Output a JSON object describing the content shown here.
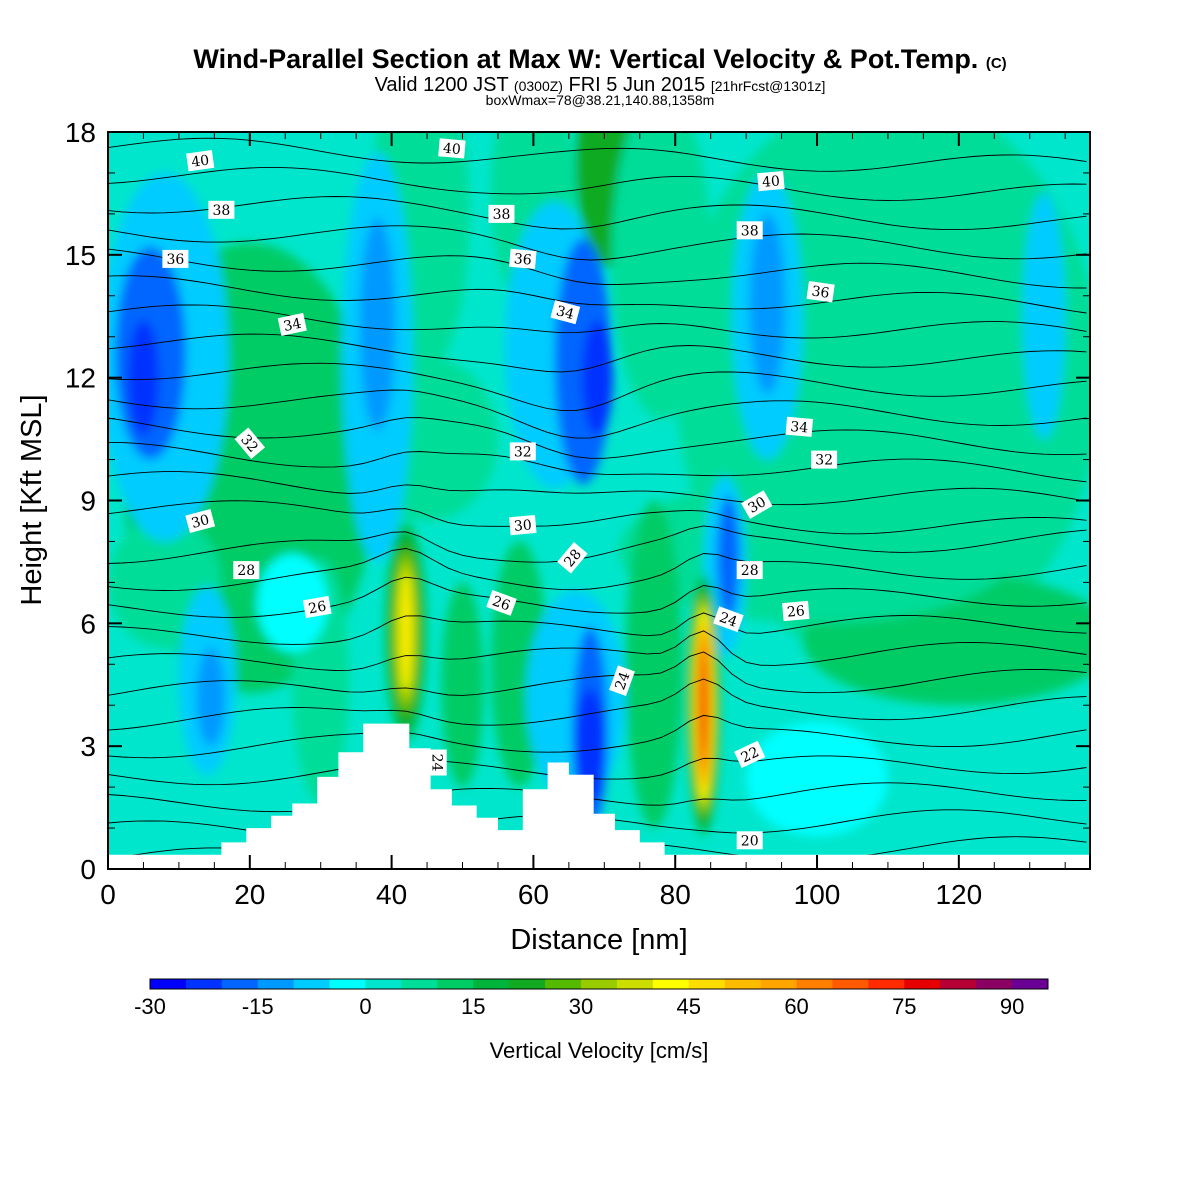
{
  "header": {
    "title": "Wind-Parallel Section at Max W: Vertical Velocity & Pot.Temp.",
    "copyright": "(C)",
    "valid_prefix": "Valid 1200 JST",
    "valid_utc": "(0300Z)",
    "valid_date": "FRI 5 Jun 2015",
    "forecast": "[21hrFcst@1301z]",
    "box_wmax": "boxWmax=78@38.21,140.88,1358m"
  },
  "chart_data": {
    "type": "heatmap",
    "xlabel": "Distance [nm]",
    "ylabel": "Height [Kft MSL]",
    "xlim": [
      0,
      138.5
    ],
    "ylim": [
      0,
      18
    ],
    "x_ticks": [
      0,
      20,
      40,
      60,
      80,
      100,
      120
    ],
    "y_ticks": [
      0,
      3,
      6,
      9,
      12,
      15,
      18
    ],
    "colorbar": {
      "title": "Vertical Velocity [cm/s]",
      "range": [
        -30,
        95
      ],
      "tick_values": [
        -30,
        -15,
        0,
        15,
        30,
        45,
        60,
        75,
        90
      ],
      "tick_labels": [
        "-30",
        "-15",
        "0",
        "15",
        "30",
        "45",
        "60",
        "75",
        "90"
      ],
      "colors": [
        "#0000ff",
        "#0033ff",
        "#0066ff",
        "#0099ff",
        "#00ccff",
        "#00ffff",
        "#00e6cc",
        "#00dd99",
        "#00cc66",
        "#00b43c",
        "#11aa22",
        "#55bb00",
        "#99cc00",
        "#ccdd00",
        "#ffff00",
        "#ffdd00",
        "#ffbb00",
        "#ffa500",
        "#ff8000",
        "#ff5a00",
        "#ff2a00",
        "#e60000",
        "#b40032",
        "#8c0064",
        "#6a0096"
      ]
    },
    "vertical_velocity_features": [
      {
        "label": "updraft",
        "x": 42,
        "y": 5.8,
        "peak_cm_s": 45
      },
      {
        "label": "updraft",
        "x": 84,
        "y": 4.0,
        "peak_cm_s": 78
      },
      {
        "label": "downdraft",
        "x": 5,
        "y": 12,
        "peak_cm_s": -25
      },
      {
        "label": "downdraft",
        "x": 69,
        "y": 12,
        "peak_cm_s": -25
      },
      {
        "label": "downdraft",
        "x": 38,
        "y": 13,
        "peak_cm_s": -15
      },
      {
        "label": "downdraft",
        "x": 87,
        "y": 7.5,
        "peak_cm_s": -20
      },
      {
        "label": "downdraft",
        "x": 68,
        "y": 3,
        "peak_cm_s": -25
      },
      {
        "label": "downdraft",
        "x": 14,
        "y": 4.5,
        "peak_cm_s": -12
      }
    ],
    "terrain": {
      "x": [
        0,
        16,
        16,
        19.5,
        19.5,
        23,
        23,
        26,
        26,
        29.5,
        29.5,
        32.5,
        32.5,
        36,
        36,
        42.5,
        42.5,
        45.5,
        45.5,
        48.5,
        48.5,
        52,
        52,
        55,
        55,
        58.5,
        58.5,
        62,
        62,
        65,
        65,
        68.5,
        68.5,
        71.5,
        71.5,
        75,
        75,
        78.5,
        78.5,
        84.5,
        84.5,
        138.5
      ],
      "y": [
        0.35,
        0.35,
        0.65,
        0.65,
        1.0,
        1.0,
        1.3,
        1.3,
        1.6,
        1.6,
        2.25,
        2.25,
        2.85,
        2.85,
        3.55,
        3.55,
        2.95,
        2.95,
        1.95,
        1.95,
        1.55,
        1.55,
        1.25,
        1.25,
        0.95,
        0.95,
        1.95,
        1.95,
        2.6,
        2.6,
        2.3,
        2.3,
        1.35,
        1.35,
        0.95,
        0.95,
        0.65,
        0.65,
        0.35,
        0.35,
        0.35,
        0.35
      ]
    },
    "potential_temperature_labels": [
      {
        "text": "40",
        "x": 13,
        "y": 17.3,
        "angle": -8
      },
      {
        "text": "40",
        "x": 48.5,
        "y": 17.6,
        "angle": 5
      },
      {
        "text": "40",
        "x": 93.5,
        "y": 16.8,
        "angle": -5
      },
      {
        "text": "38",
        "x": 16,
        "y": 16.1,
        "angle": 0
      },
      {
        "text": "38",
        "x": 55.5,
        "y": 16.0,
        "angle": 0
      },
      {
        "text": "38",
        "x": 90.5,
        "y": 15.6,
        "angle": 0
      },
      {
        "text": "36",
        "x": 9.5,
        "y": 14.9,
        "angle": 0
      },
      {
        "text": "36",
        "x": 58.5,
        "y": 14.9,
        "angle": 5
      },
      {
        "text": "36",
        "x": 100.5,
        "y": 14.1,
        "angle": 8
      },
      {
        "text": "34",
        "x": 26,
        "y": 13.3,
        "angle": -12
      },
      {
        "text": "34",
        "x": 64.5,
        "y": 13.6,
        "angle": 15
      },
      {
        "text": "34",
        "x": 97.5,
        "y": 10.8,
        "angle": 5
      },
      {
        "text": "32",
        "x": 20,
        "y": 10.4,
        "angle": 50
      },
      {
        "text": "32",
        "x": 58.5,
        "y": 10.2,
        "angle": 0
      },
      {
        "text": "32",
        "x": 101,
        "y": 10.0,
        "angle": 0
      },
      {
        "text": "30",
        "x": 13,
        "y": 8.5,
        "angle": -15
      },
      {
        "text": "30",
        "x": 58.5,
        "y": 8.4,
        "angle": -5
      },
      {
        "text": "30",
        "x": 91.5,
        "y": 8.9,
        "angle": -30
      },
      {
        "text": "28",
        "x": 19.5,
        "y": 7.3,
        "angle": 0
      },
      {
        "text": "28",
        "x": 65.5,
        "y": 7.6,
        "angle": -50
      },
      {
        "text": "28",
        "x": 90.5,
        "y": 7.3,
        "angle": 0
      },
      {
        "text": "26",
        "x": 29.5,
        "y": 6.4,
        "angle": -10
      },
      {
        "text": "26",
        "x": 55.5,
        "y": 6.5,
        "angle": 20
      },
      {
        "text": "26",
        "x": 97,
        "y": 6.3,
        "angle": -5
      },
      {
        "text": "24",
        "x": 46.5,
        "y": 2.6,
        "angle": 90
      },
      {
        "text": "24",
        "x": 72.5,
        "y": 4.6,
        "angle": -70
      },
      {
        "text": "24",
        "x": 87.5,
        "y": 6.1,
        "angle": 20
      },
      {
        "text": "22",
        "x": 90.5,
        "y": 2.8,
        "angle": -25
      },
      {
        "text": "20",
        "x": 90.5,
        "y": 0.7,
        "angle": 0
      }
    ]
  }
}
